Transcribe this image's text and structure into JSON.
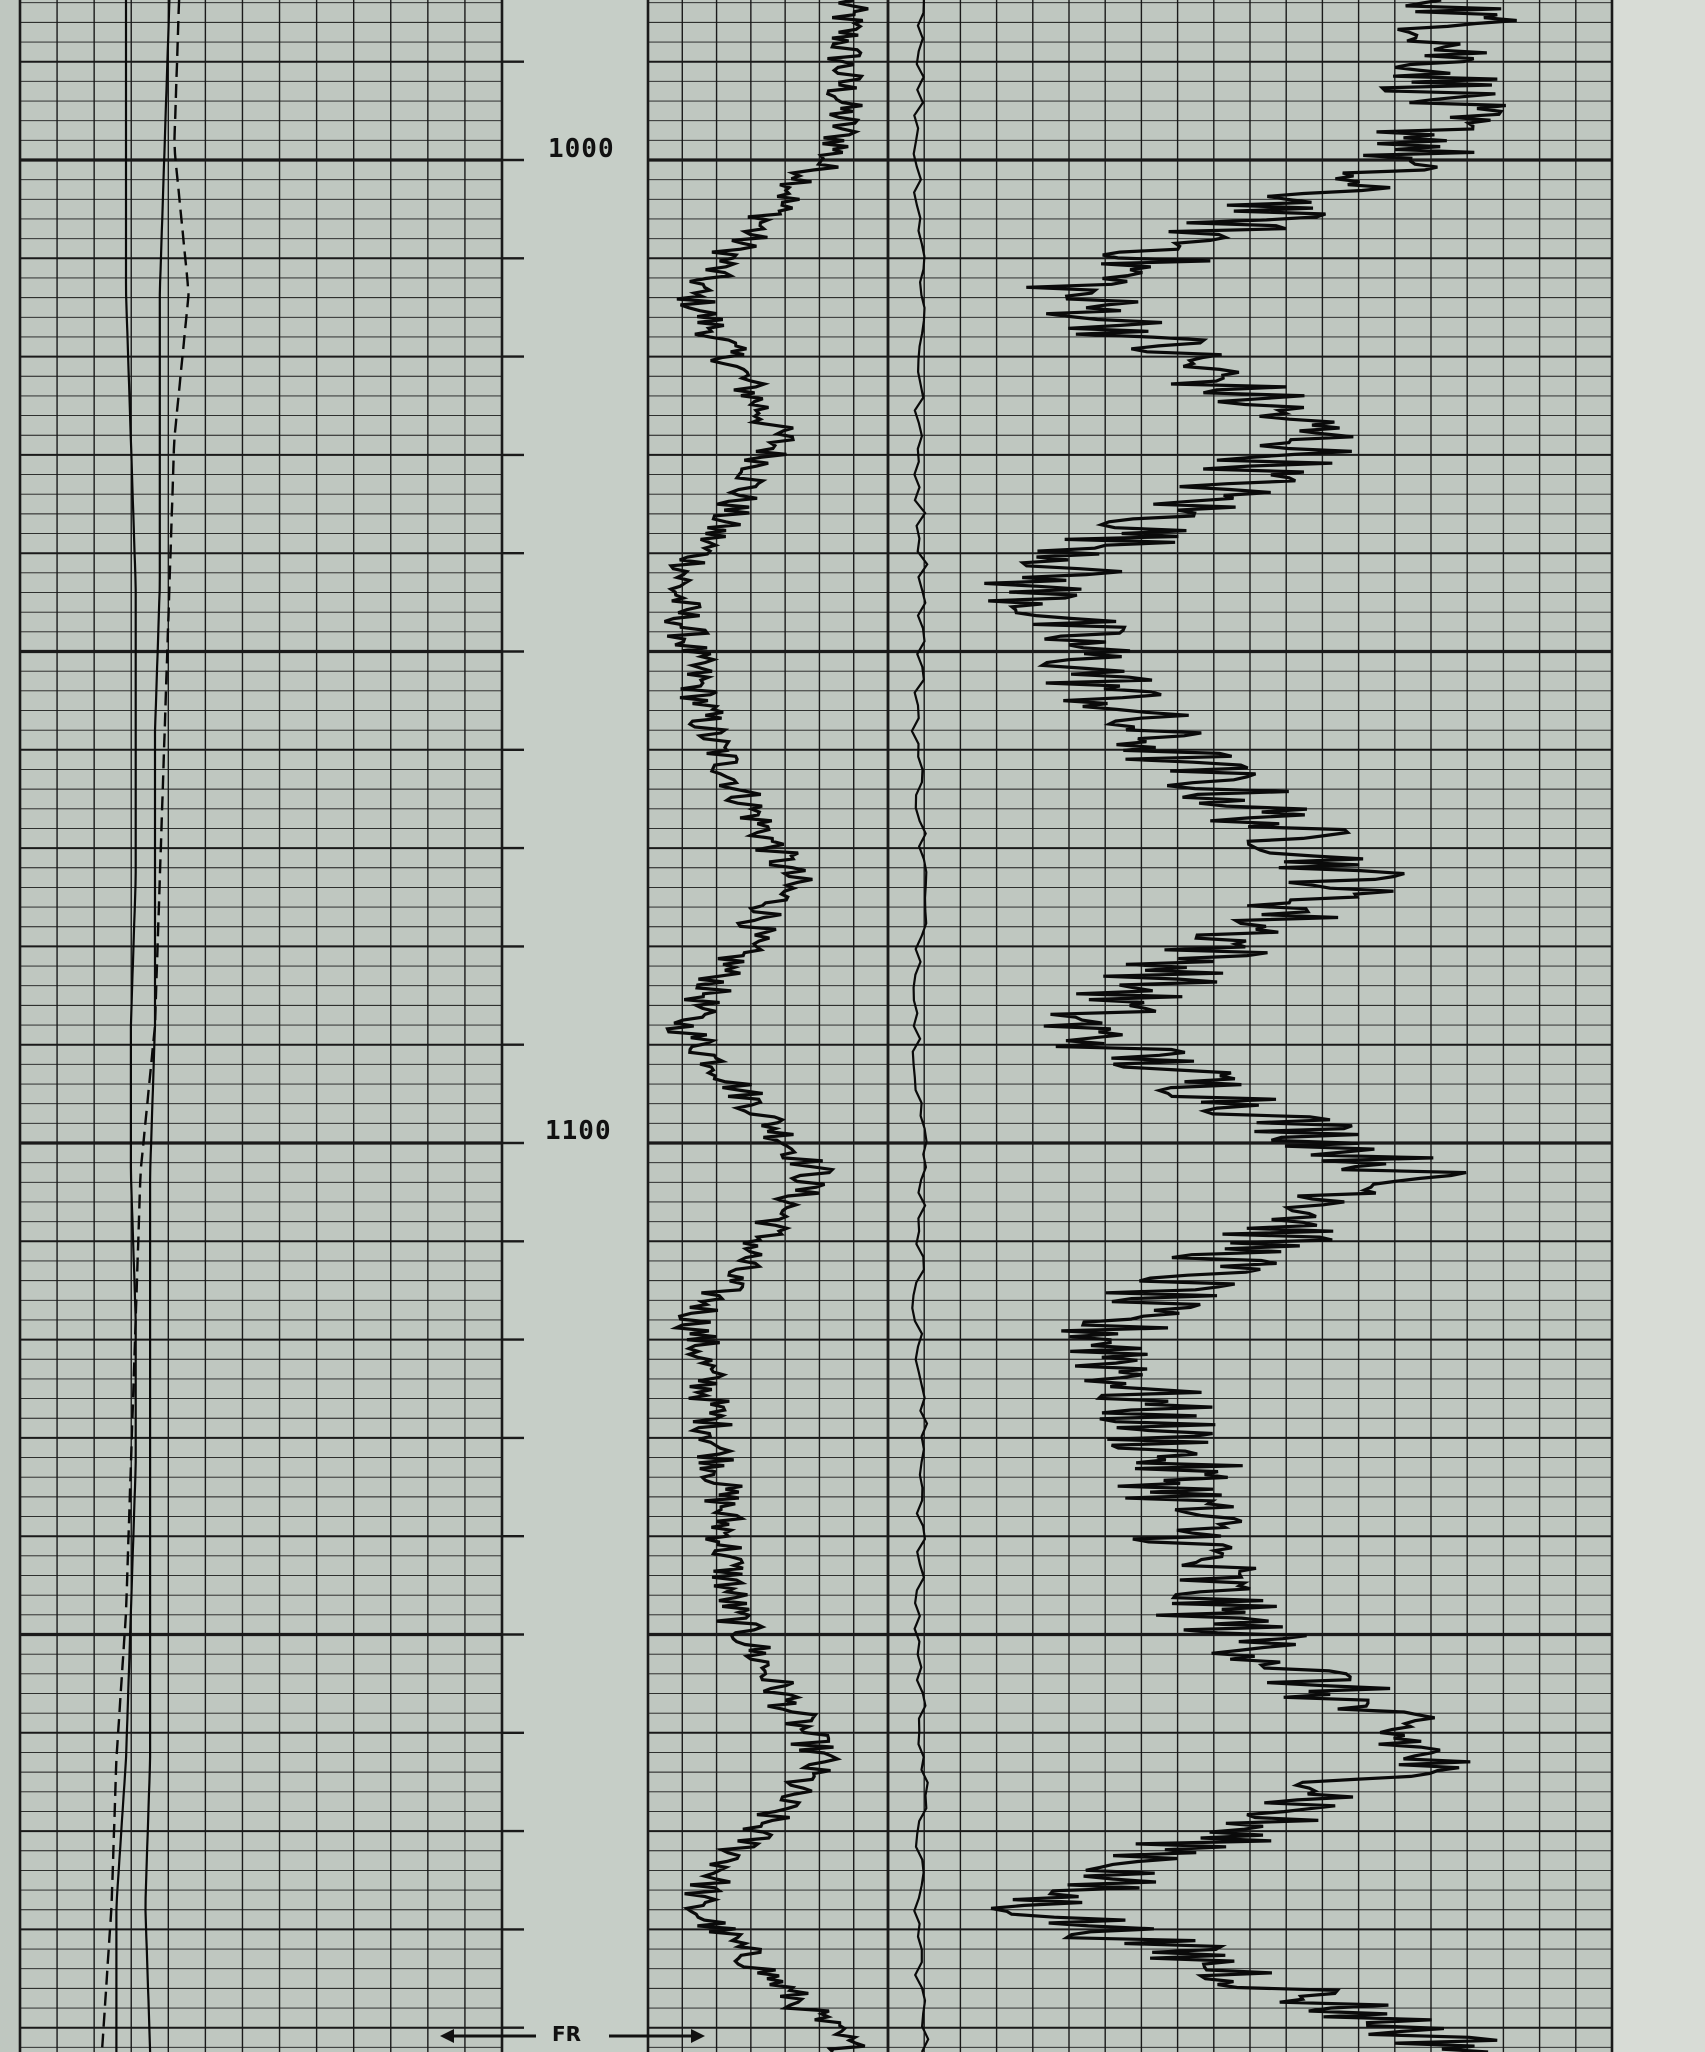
{
  "chart_data": {
    "type": "line",
    "title": "",
    "depth_ticks": [
      {
        "depth": 1000,
        "label": "1000"
      },
      {
        "depth": 1100,
        "label": "1100"
      }
    ],
    "marker_label": "FR",
    "grid": true,
    "colors": {
      "paper": "#bfc7c0",
      "gap": "#c6cec7",
      "grid": "#1a1a1a",
      "trace": "#0a0a0a"
    },
    "tracks": [
      {
        "kind": "gr-sp",
        "series": [
          {
            "style": "solid",
            "x": [
              0.22,
              0.22,
              0.22,
              0.23,
              0.24,
              0.24,
              0.24,
              0.23,
              0.23,
              0.24,
              0.24,
              0.23,
              0.22,
              0.2,
              0.2
            ]
          },
          {
            "style": "solid",
            "x": [
              0.31,
              0.3,
              0.29,
              0.29,
              0.29,
              0.28,
              0.28,
              0.28,
              0.27,
              0.27,
              0.27,
              0.27,
              0.27,
              0.26,
              0.27
            ]
          },
          {
            "style": "dashed",
            "x": [
              0.33,
              0.32,
              0.35,
              0.32,
              0.31,
              0.3,
              0.29,
              0.28,
              0.25,
              0.24,
              0.23,
              0.22,
              0.2,
              0.19,
              0.17
            ]
          }
        ]
      },
      {
        "kind": "porosity",
        "series": [
          {
            "style": "bold",
            "x": [
              0.83,
              0.8,
              0.18,
              0.55,
              0.12,
              0.25,
              0.6,
              0.15,
              0.7,
              0.2,
              0.3,
              0.35,
              0.72,
              0.18,
              0.86
            ]
          }
        ]
      },
      {
        "kind": "resistivity",
        "series": [
          {
            "style": "thin",
            "x": [
              0.05,
              0.04,
              0.05,
              0.04,
              0.05,
              0.04,
              0.05,
              0.04,
              0.05,
              0.04,
              0.05,
              0.04,
              0.05,
              0.04,
              0.05
            ]
          },
          {
            "style": "bold",
            "x": [
              0.8,
              0.75,
              0.25,
              0.6,
              0.2,
              0.35,
              0.65,
              0.25,
              0.72,
              0.3,
              0.4,
              0.45,
              0.75,
              0.2,
              0.82
            ]
          }
        ]
      }
    ]
  }
}
